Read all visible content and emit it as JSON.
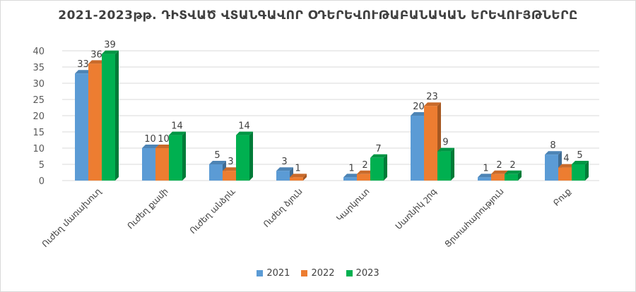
{
  "chart_data": {
    "type": "bar",
    "title": "2021-2023թթ. ԴԻՏՎԱԾ ՎՏԱՆԳԱՎՈՐ ՕԴԵՐԵՎՈՒԹԱԲԱՆԱԿԱՆ ԵՐԵՎՈՒՅԹՆԵՐԸ",
    "categories": [
      "Ուժեղ մառախուղ",
      "Ուժեղ քամի",
      "Ուժեղ անձրև",
      "Ուժեղ ձյուն",
      "Կարկուտ",
      "Սառնիկ շրգ",
      "Ցրտահարություն",
      "Բուք"
    ],
    "series": [
      {
        "name": "2021",
        "color": "#5b9bd5",
        "values": [
          33,
          10,
          5,
          3,
          1,
          20,
          1,
          8
        ]
      },
      {
        "name": "2022",
        "color": "#ed7d31",
        "values": [
          36,
          10,
          3,
          1,
          2,
          23,
          2,
          4
        ]
      },
      {
        "name": "2023",
        "color": "#00b050",
        "values": [
          39,
          14,
          14,
          0,
          7,
          9,
          2,
          5
        ]
      }
    ],
    "ylim": [
      0,
      40
    ],
    "yticks": [
      0,
      5,
      10,
      15,
      20,
      25,
      30,
      35,
      40
    ],
    "grid": true,
    "legend": "bottom"
  }
}
